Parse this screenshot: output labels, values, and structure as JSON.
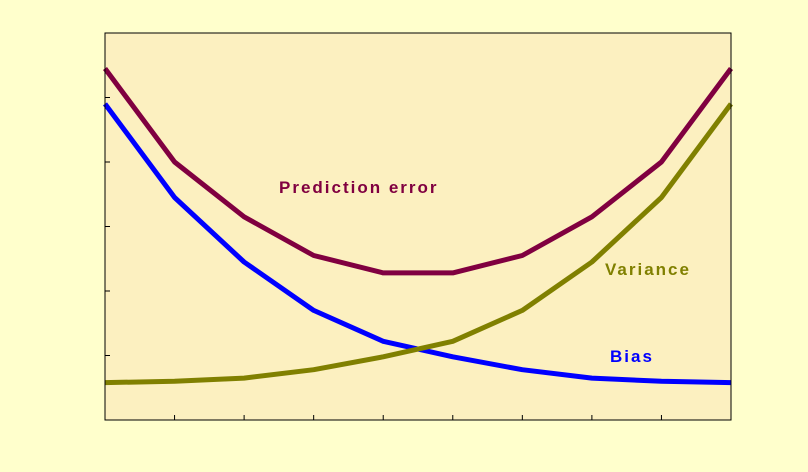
{
  "chart_data": {
    "type": "line",
    "title": "",
    "xlabel": "",
    "ylabel": "",
    "x": [
      0,
      1,
      2,
      3,
      4,
      5,
      6,
      7,
      8,
      9
    ],
    "xlim": [
      0,
      9
    ],
    "ylim": [
      0,
      6
    ],
    "grid": false,
    "plot_background": "#fcf0c0",
    "page_background": "#ffffcc",
    "series": [
      {
        "name": "Prediction error",
        "color": "#800040",
        "values": [
          5.45,
          4.0,
          3.15,
          2.55,
          2.28,
          2.28,
          2.55,
          3.15,
          4.0,
          5.45
        ]
      },
      {
        "name": "Bias",
        "color": "#0000ff",
        "values": [
          4.9,
          3.45,
          2.45,
          1.7,
          1.22,
          0.98,
          0.78,
          0.65,
          0.6,
          0.58
        ]
      },
      {
        "name": "Variance",
        "color": "#808000",
        "values": [
          0.58,
          0.6,
          0.65,
          0.78,
          0.98,
          1.22,
          1.7,
          2.45,
          3.45,
          4.9
        ]
      }
    ]
  }
}
